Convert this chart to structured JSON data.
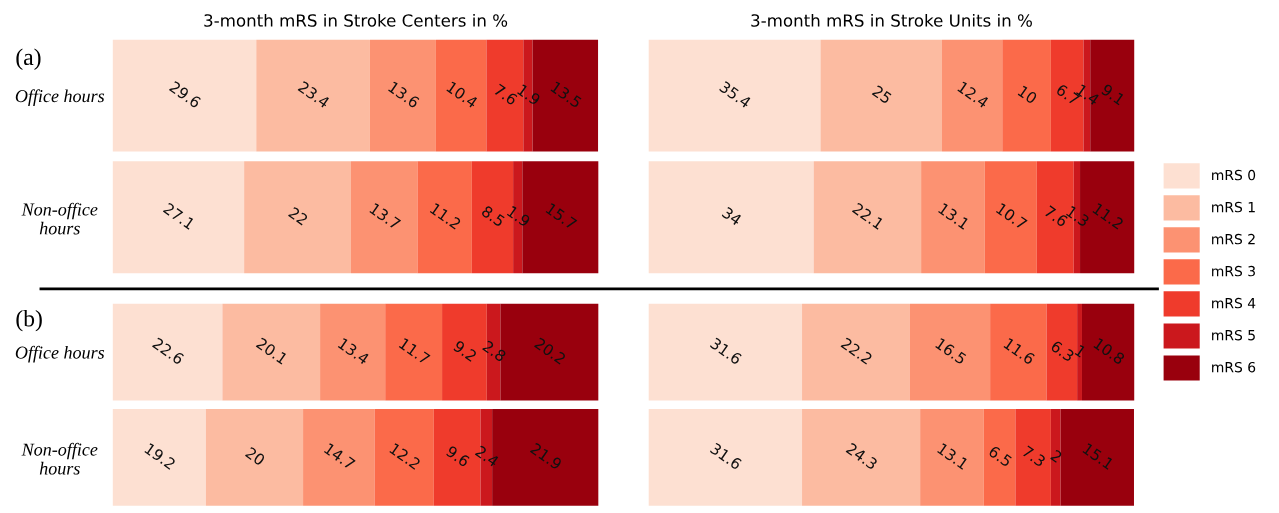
{
  "chart_data": [
    {
      "type": "bar",
      "orientation": "horizontal",
      "stacked": true,
      "data_labels": true,
      "tick_labels": "y",
      "grid": false,
      "legend": "right",
      "title": "3-month mRS in Stroke Centers in %",
      "annotations": [
        "(a)"
      ],
      "categories": [
        "Office hours",
        "Non-office\nhours"
      ],
      "series": [
        {
          "name": "mRS 0",
          "color": "#fde0d2",
          "values": [
            29.6,
            27.1
          ]
        },
        {
          "name": "mRS 1",
          "color": "#fcbba1",
          "values": [
            23.4,
            22
          ]
        },
        {
          "name": "mRS 2",
          "color": "#fc9272",
          "values": [
            13.6,
            13.7
          ]
        },
        {
          "name": "mRS 3",
          "color": "#fb6a4a",
          "values": [
            10.4,
            11.2
          ]
        },
        {
          "name": "mRS 4",
          "color": "#ef3b2c",
          "values": [
            7.6,
            8.5
          ]
        },
        {
          "name": "mRS 5",
          "color": "#cb181d",
          "values": [
            1.9,
            1.9
          ]
        },
        {
          "name": "mRS 6",
          "color": "#99000d",
          "values": [
            13.5,
            15.7
          ]
        }
      ]
    },
    {
      "type": "bar",
      "orientation": "horizontal",
      "stacked": true,
      "data_labels": true,
      "tick_labels": false,
      "grid": false,
      "title": "3-month mRS in Stroke Units in %",
      "categories": [
        null,
        null
      ],
      "series": [
        {
          "color": "#fde0d2",
          "values": [
            35.4,
            34
          ]
        },
        {
          "color": "#fcbba1",
          "values": [
            25,
            22.1
          ]
        },
        {
          "color": "#fc9272",
          "values": [
            12.4,
            13.1
          ]
        },
        {
          "color": "#fb6a4a",
          "values": [
            10,
            10.7
          ]
        },
        {
          "color": "#ef3b2c",
          "values": [
            6.7,
            7.6
          ]
        },
        {
          "color": "#cb181d",
          "values": [
            1.4,
            1.3
          ]
        },
        {
          "color": "#99000d",
          "values": [
            9.1,
            11.2
          ]
        }
      ]
    },
    {
      "type": "bar",
      "orientation": "horizontal",
      "stacked": true,
      "data_labels": true,
      "tick_labels": "y",
      "grid": false,
      "annotations": [
        "(b)"
      ],
      "categories": [
        "Office hours",
        "Non-office\nhours"
      ],
      "series": [
        {
          "color": "#fde0d2",
          "values": [
            22.6,
            19.2
          ]
        },
        {
          "color": "#fcbba1",
          "values": [
            20.1,
            20
          ]
        },
        {
          "color": "#fc9272",
          "values": [
            13.4,
            14.7
          ]
        },
        {
          "color": "#fb6a4a",
          "values": [
            11.7,
            12.2
          ]
        },
        {
          "color": "#ef3b2c",
          "values": [
            9.2,
            9.6
          ]
        },
        {
          "color": "#cb181d",
          "values": [
            2.8,
            2.4
          ]
        },
        {
          "color": "#99000d",
          "values": [
            20.2,
            21.9
          ]
        }
      ]
    },
    {
      "type": "bar",
      "orientation": "horizontal",
      "stacked": true,
      "data_labels": true,
      "tick_labels": false,
      "grid": false,
      "categories": [
        null,
        null
      ],
      "series": [
        {
          "color": "#fde0d2",
          "values": [
            31.6,
            31.6
          ]
        },
        {
          "color": "#fcbba1",
          "values": [
            22.2,
            24.3
          ]
        },
        {
          "color": "#fc9272",
          "values": [
            16.5,
            13.1
          ]
        },
        {
          "color": "#fb6a4a",
          "values": [
            11.6,
            6.5
          ]
        },
        {
          "color": "#ef3b2c",
          "values": [
            6.3,
            7.3
          ]
        },
        {
          "color": "#cb181d",
          "values": [
            1,
            2
          ]
        },
        {
          "color": "#99000d",
          "values": [
            10.8,
            15.1
          ]
        }
      ]
    }
  ]
}
